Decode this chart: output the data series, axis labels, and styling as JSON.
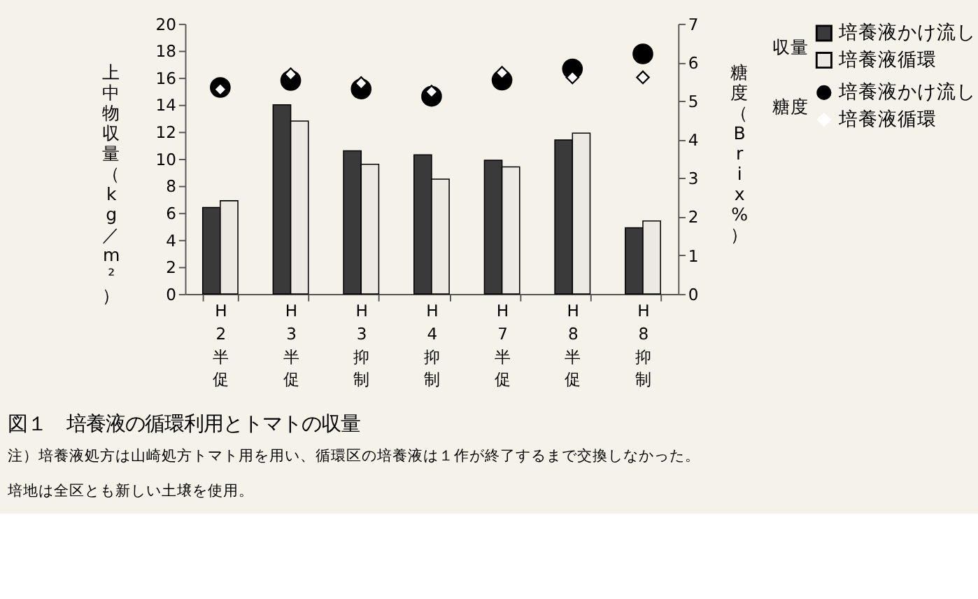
{
  "chart_data": {
    "type": "bar",
    "title": "図１　培養液の循環利用とトマトの収量",
    "annotations": [
      "注）培養液処方は山崎処方トマト用を用い、循環区の培養液は１作が終了するまで交換しなかった。",
      "培地は全区とも新しい土壌を使用。"
    ],
    "categories": [
      "H2半促",
      "H3半促",
      "H3抑制",
      "H4抑制",
      "H7半促",
      "H8半促",
      "H8抑制"
    ],
    "ylabel": "上中物収量（kg／m²）",
    "y2label": "糖度（Brix%）",
    "legend_title": [
      "収量",
      "糖度"
    ],
    "series": [
      {
        "name": "培養液かけ流し",
        "type": "bar",
        "color": "#3a3a3a",
        "values": [
          6.4,
          14.0,
          10.6,
          10.3,
          9.9,
          11.4,
          4.9
        ]
      },
      {
        "name": "培養液循環",
        "type": "bar",
        "color": "#ebe9e2",
        "values": [
          6.9,
          12.8,
          9.6,
          8.5,
          9.4,
          11.9,
          5.4
        ]
      },
      {
        "name": "培養液かけ流し",
        "type": "scatter",
        "axis": "y2",
        "marker": "circle",
        "color": "#000000",
        "values": [
          5.35,
          5.53,
          5.31,
          5.12,
          5.54,
          5.83,
          6.22
        ]
      },
      {
        "name": "培養液循環",
        "type": "scatter",
        "axis": "y2",
        "marker": "diamond",
        "color": "#ffffff",
        "values": [
          5.3,
          5.69,
          5.46,
          5.24,
          5.73,
          5.61,
          5.61
        ]
      }
    ],
    "ylim": [
      0,
      20
    ],
    "yticks": [
      0,
      2,
      4,
      6,
      8,
      10,
      12,
      14,
      16,
      18,
      20
    ],
    "y2lim": [
      0,
      7
    ],
    "y2ticks": [
      0,
      1,
      2,
      3,
      4,
      5,
      6,
      7
    ],
    "grid": false,
    "legend": "top right"
  }
}
